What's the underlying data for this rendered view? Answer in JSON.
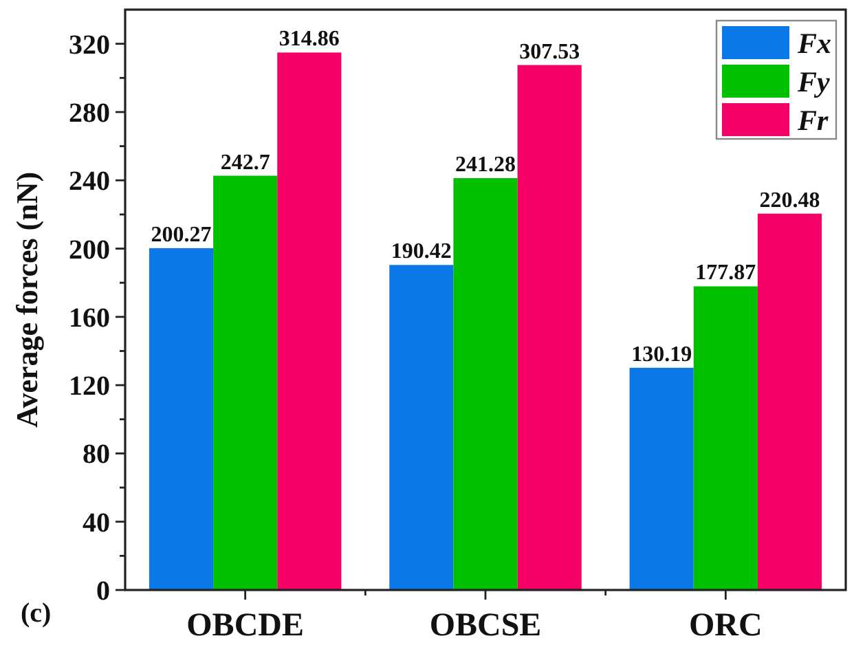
{
  "chart_data": {
    "type": "bar",
    "categories": [
      "OBCDE",
      "OBCSE",
      "ORC"
    ],
    "series": [
      {
        "name": "Fx",
        "color": "#0a78e6",
        "values": [
          200.27,
          190.42,
          130.19
        ]
      },
      {
        "name": "Fy",
        "color": "#00c000",
        "values": [
          242.7,
          241.28,
          177.87
        ]
      },
      {
        "name": "Fr",
        "color": "#f50066",
        "values": [
          314.86,
          307.53,
          220.48
        ]
      }
    ],
    "ylabel": "Average forces (nN)",
    "ylim": [
      0,
      340
    ],
    "yticks": [
      0,
      {
        "value": 20,
        "label": null
      },
      40,
      {
        "value": 60,
        "label": null
      },
      80,
      {
        "value": 100,
        "label": null
      },
      120,
      {
        "value": 140,
        "label": null
      },
      160,
      {
        "value": 180,
        "label": null
      },
      200,
      {
        "value": 220,
        "label": null
      },
      240,
      {
        "value": 260,
        "label": null
      },
      280,
      {
        "value": 300,
        "label": null
      },
      320
    ],
    "data_labels": true,
    "legend": "top right",
    "annotations": [
      "(c)"
    ]
  }
}
